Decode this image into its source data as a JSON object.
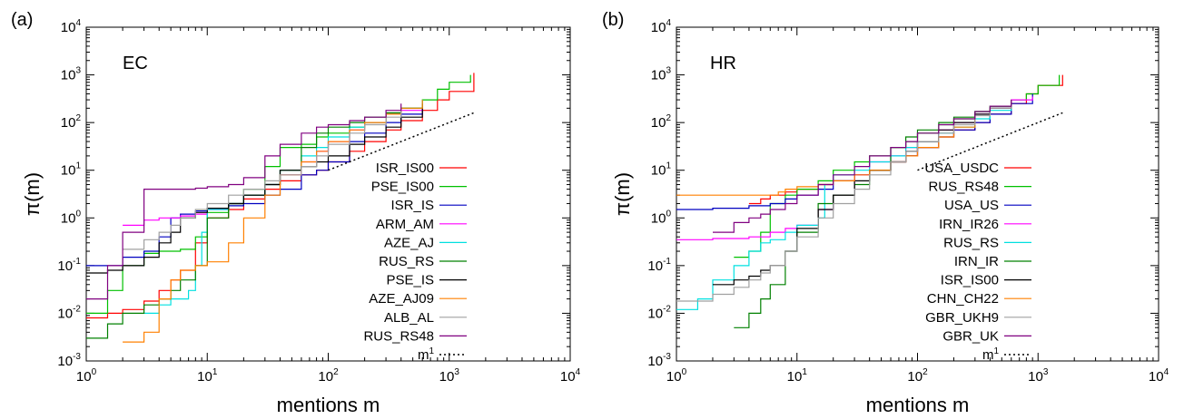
{
  "chart_data": [
    {
      "type": "line",
      "panel_label": "(a)",
      "inner_label": "EC",
      "xlabel": "mentions m",
      "ylabel": "π(m)",
      "xscale": "log",
      "yscale": "log",
      "xlim": [
        1,
        10000
      ],
      "ylim": [
        0.001,
        10000
      ],
      "x_tick_exponents": [
        "0",
        "1",
        "2",
        "3",
        "4"
      ],
      "y_tick_exponents": [
        "-3",
        "-2",
        "-1",
        "0",
        "1",
        "2",
        "3",
        "4"
      ],
      "tick_base": "10",
      "legend_position": "right",
      "series": [
        {
          "name": "ISR_IS00",
          "color": "#ff0000",
          "x": [
            1,
            1.5,
            2,
            3,
            4,
            5,
            6,
            8,
            10,
            15,
            20,
            30,
            40,
            60,
            80,
            100,
            150,
            200,
            300,
            400,
            600,
            800,
            1000,
            1600
          ],
          "y": [
            0.008,
            0.01,
            0.012,
            0.018,
            0.03,
            0.05,
            0.08,
            0.3,
            1.0,
            1.5,
            2.5,
            4,
            6,
            8,
            10,
            15,
            25,
            40,
            70,
            110,
            180,
            300,
            450,
            1100
          ]
        },
        {
          "name": "PSE_IS00",
          "color": "#00c000",
          "x": [
            1,
            1.5,
            2,
            3,
            4,
            5,
            6,
            8,
            10,
            15,
            20,
            30,
            40,
            60,
            80,
            100,
            150,
            200,
            300,
            400,
            600,
            800,
            1000,
            1500
          ],
          "y": [
            0.01,
            0.03,
            0.1,
            0.18,
            0.2,
            0.2,
            0.22,
            0.4,
            1.3,
            2,
            4,
            12,
            30,
            35,
            50,
            60,
            80,
            100,
            150,
            200,
            300,
            500,
            700,
            1000
          ]
        },
        {
          "name": "ISR_IS",
          "color": "#0000c0",
          "x": [
            1,
            2,
            3,
            4,
            5,
            6,
            8,
            10,
            15,
            20,
            30,
            40,
            60,
            80,
            100,
            150,
            200,
            300,
            400,
            600
          ],
          "y": [
            0.1,
            0.15,
            0.2,
            0.4,
            1.0,
            1.2,
            1.4,
            1.6,
            1.8,
            2,
            3,
            4,
            8,
            10,
            15,
            40,
            60,
            100,
            150,
            250
          ]
        },
        {
          "name": "ARM_AM",
          "color": "#ff00ff",
          "x": [
            2,
            3,
            4,
            5,
            6,
            8,
            10,
            15,
            20,
            30,
            40,
            60,
            80,
            100,
            150,
            200,
            300,
            400,
            600
          ],
          "y": [
            0.7,
            0.9,
            1.0,
            1.0,
            1.1,
            1.2,
            1.5,
            2,
            3,
            5,
            8,
            15,
            25,
            40,
            70,
            100,
            150,
            180,
            200
          ]
        },
        {
          "name": "AZE_AJ",
          "color": "#00e0e0",
          "x": [
            3,
            4,
            5,
            6,
            7,
            8,
            9,
            10,
            15,
            20,
            30,
            40,
            60,
            80,
            100,
            150,
            200,
            300,
            400,
            600
          ],
          "y": [
            0.01,
            0.015,
            0.02,
            0.02,
            0.03,
            0.1,
            0.5,
            1.5,
            2,
            3,
            5,
            10,
            20,
            30,
            50,
            80,
            100,
            150,
            200,
            300
          ]
        },
        {
          "name": "RUS_RS",
          "color": "#008000",
          "x": [
            1,
            1.5,
            2,
            3,
            4,
            5,
            6,
            8,
            10,
            15,
            20,
            30,
            40,
            60,
            80,
            100,
            150,
            200,
            300,
            400,
            600
          ],
          "y": [
            0.003,
            0.006,
            0.01,
            0.015,
            0.02,
            0.03,
            0.05,
            0.1,
            1.0,
            2,
            3,
            5,
            10,
            30,
            60,
            80,
            100,
            130,
            160,
            200,
            250
          ]
        },
        {
          "name": "PSE_IS",
          "color": "#000000",
          "x": [
            1,
            1.5,
            2,
            3,
            4,
            5,
            6,
            8,
            10,
            15,
            20,
            30,
            40,
            60,
            80,
            100,
            150,
            200,
            300,
            400,
            600
          ],
          "y": [
            0.07,
            0.08,
            0.1,
            0.15,
            0.3,
            0.5,
            1.0,
            1.3,
            1.6,
            2,
            3,
            5,
            10,
            12,
            15,
            20,
            35,
            50,
            80,
            130,
            200
          ]
        },
        {
          "name": "AZE_AJ09",
          "color": "#ff8000",
          "x": [
            2,
            3,
            4,
            5,
            6,
            8,
            10,
            15,
            20,
            30,
            40,
            60,
            80,
            100,
            150,
            200,
            300,
            400,
            600
          ],
          "y": [
            0.0025,
            0.004,
            0.02,
            0.05,
            0.08,
            0.1,
            0.12,
            0.3,
            1.0,
            3,
            8,
            15,
            25,
            40,
            70,
            100,
            150,
            200,
            300
          ]
        },
        {
          "name": "ALB_AL",
          "color": "#a0a0a0",
          "x": [
            2,
            3,
            4,
            5,
            6,
            8,
            10,
            15,
            20,
            30,
            40,
            60,
            80,
            100,
            150,
            200,
            300,
            400
          ],
          "y": [
            0.22,
            0.35,
            0.5,
            0.7,
            1.0,
            1.5,
            2,
            3,
            4,
            6,
            8,
            12,
            20,
            35,
            60,
            90,
            130,
            200
          ]
        },
        {
          "name": "RUS_RS48",
          "color": "#800080",
          "x": [
            1,
            1.5,
            2,
            3,
            4,
            5,
            6,
            8,
            10,
            15,
            20,
            30,
            40,
            60,
            80,
            100,
            150,
            200,
            300,
            400
          ],
          "y": [
            0.02,
            0.1,
            0.5,
            4,
            4,
            4,
            4,
            4.2,
            4.5,
            5,
            7,
            20,
            35,
            60,
            80,
            90,
            110,
            130,
            180,
            250
          ]
        },
        {
          "name": "m^1",
          "color": "#000000",
          "dash": true,
          "x": [
            100,
            1600
          ],
          "y": [
            10,
            160
          ]
        }
      ]
    },
    {
      "type": "line",
      "panel_label": "(b)",
      "inner_label": "HR",
      "xlabel": "mentions m",
      "ylabel": "π(m)",
      "xscale": "log",
      "yscale": "log",
      "xlim": [
        1,
        10000
      ],
      "ylim": [
        0.001,
        10000
      ],
      "x_tick_exponents": [
        "0",
        "1",
        "2",
        "3",
        "4"
      ],
      "y_tick_exponents": [
        "-3",
        "-2",
        "-1",
        "0",
        "1",
        "2",
        "3",
        "4"
      ],
      "tick_base": "10",
      "legend_position": "right",
      "series": [
        {
          "name": "USA_USDC",
          "color": "#ff0000",
          "x": [
            4,
            5,
            6,
            8,
            10,
            15,
            20,
            30,
            40,
            60,
            80,
            100,
            150,
            200,
            300,
            400,
            600,
            800,
            1000,
            1600
          ],
          "y": [
            2,
            2.5,
            3,
            3.5,
            4,
            5,
            6,
            8,
            10,
            15,
            20,
            30,
            50,
            70,
            100,
            150,
            250,
            400,
            600,
            1000
          ]
        },
        {
          "name": "RUS_RS48",
          "color": "#00c000",
          "x": [
            3,
            4,
            5,
            6,
            8,
            10,
            15,
            20,
            30,
            40,
            60,
            80,
            100,
            150,
            200,
            300,
            400,
            600,
            800,
            1000,
            1500
          ],
          "y": [
            0.15,
            0.2,
            0.5,
            2,
            3,
            4,
            6,
            10,
            15,
            20,
            30,
            40,
            60,
            90,
            120,
            170,
            220,
            300,
            400,
            600,
            1000
          ]
        },
        {
          "name": "USA_US",
          "color": "#0000c0",
          "x": [
            1,
            2,
            4,
            6,
            8,
            10,
            15,
            20,
            30,
            40,
            60,
            80,
            100,
            150,
            200,
            300,
            400,
            600,
            900
          ],
          "y": [
            1.5,
            1.6,
            1.8,
            2,
            2.5,
            3,
            4,
            6,
            8,
            10,
            15,
            20,
            30,
            50,
            70,
            100,
            150,
            250,
            400
          ]
        },
        {
          "name": "IRN_IR26",
          "color": "#ff00ff",
          "x": [
            1,
            2,
            4,
            6,
            8,
            10,
            15,
            20,
            30,
            40,
            60,
            80,
            100,
            150,
            200,
            300,
            400,
            600,
            900
          ],
          "y": [
            0.35,
            0.37,
            0.4,
            0.5,
            0.6,
            0.7,
            1.5,
            3,
            8,
            15,
            20,
            30,
            40,
            70,
            100,
            150,
            200,
            300,
            350
          ]
        },
        {
          "name": "RUS_RS",
          "color": "#00e0e0",
          "x": [
            1,
            1.5,
            2,
            3,
            4,
            5,
            6,
            8,
            10,
            15,
            17,
            20,
            30,
            40,
            60,
            80,
            100,
            150,
            200,
            300,
            400,
            600
          ],
          "y": [
            0.012,
            0.02,
            0.05,
            0.1,
            0.2,
            0.3,
            0.35,
            0.5,
            0.7,
            1.0,
            5,
            8,
            10,
            15,
            20,
            30,
            40,
            60,
            80,
            120,
            180,
            300
          ]
        },
        {
          "name": "IRN_IR",
          "color": "#008000",
          "x": [
            3,
            4,
            5,
            6,
            8,
            10,
            15,
            20,
            30,
            40,
            60,
            80,
            100,
            150,
            200,
            300,
            400,
            600
          ],
          "y": [
            0.005,
            0.01,
            0.02,
            0.04,
            0.2,
            0.5,
            2,
            3,
            5,
            10,
            30,
            50,
            70,
            100,
            130,
            170,
            220,
            300
          ]
        },
        {
          "name": "ISR_IS00",
          "color": "#000000",
          "x": [
            2,
            3,
            4,
            5,
            6,
            8,
            10,
            15,
            20,
            30,
            40,
            60,
            80,
            100,
            150,
            200,
            300,
            400,
            600
          ],
          "y": [
            0.04,
            0.05,
            0.06,
            0.08,
            0.1,
            0.2,
            0.6,
            1.5,
            3,
            6,
            10,
            15,
            25,
            40,
            70,
            100,
            150,
            200,
            300
          ]
        },
        {
          "name": "CHN_CH22",
          "color": "#ff8000",
          "x": [
            1,
            2,
            3,
            4,
            5,
            6,
            7,
            8,
            10,
            15,
            20,
            30,
            40,
            60,
            80,
            100,
            150,
            200,
            300
          ],
          "y": [
            3,
            3,
            3,
            3,
            3,
            3,
            3.5,
            4,
            4.5,
            5,
            6,
            8,
            10,
            15,
            20,
            30,
            50,
            80,
            120
          ]
        },
        {
          "name": "GBR_UKH9",
          "color": "#a0a0a0",
          "x": [
            1,
            2,
            3,
            4,
            5,
            6,
            8,
            10,
            15,
            20,
            30,
            40,
            60,
            80,
            100,
            150,
            200,
            300,
            400,
            600
          ],
          "y": [
            0.018,
            0.025,
            0.035,
            0.05,
            0.07,
            0.1,
            0.2,
            0.4,
            1,
            2,
            4,
            8,
            15,
            25,
            40,
            60,
            90,
            140,
            200,
            300
          ]
        },
        {
          "name": "GBR_UK",
          "color": "#800080",
          "x": [
            2,
            3,
            4,
            5,
            6,
            8,
            10,
            15,
            20,
            30,
            40,
            60,
            80,
            100,
            150,
            200,
            300,
            400,
            600
          ],
          "y": [
            0.5,
            0.8,
            1.0,
            1.2,
            1.5,
            2,
            3,
            5,
            8,
            12,
            20,
            30,
            40,
            60,
            90,
            120,
            170,
            220,
            300
          ]
        },
        {
          "name": "m^1",
          "color": "#000000",
          "dash": true,
          "x": [
            100,
            1600
          ],
          "y": [
            10,
            160
          ]
        }
      ]
    }
  ]
}
